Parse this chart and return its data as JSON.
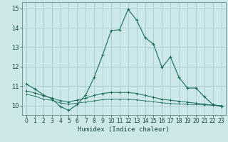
{
  "xlabel": "Humidex (Indice chaleur)",
  "bg_color": "#cce8e8",
  "grid_color": "#aacccc",
  "line_color": "#1a6b5a",
  "xlim": [
    -0.5,
    23.5
  ],
  "ylim": [
    9.5,
    15.3
  ],
  "yticks": [
    10,
    11,
    12,
    13,
    14,
    15
  ],
  "xticks": [
    0,
    1,
    2,
    3,
    4,
    5,
    6,
    7,
    8,
    9,
    10,
    11,
    12,
    13,
    14,
    15,
    16,
    17,
    18,
    19,
    20,
    21,
    22,
    23
  ],
  "series1_x": [
    0,
    1,
    2,
    3,
    4,
    5,
    6,
    7,
    8,
    9,
    10,
    11,
    12,
    13,
    14,
    15,
    16,
    17,
    18,
    19,
    20,
    21,
    22,
    23
  ],
  "series1_y": [
    11.1,
    10.85,
    10.55,
    10.35,
    9.95,
    9.75,
    10.05,
    10.55,
    11.45,
    12.6,
    13.85,
    13.9,
    14.95,
    14.4,
    13.5,
    13.15,
    11.95,
    12.5,
    11.45,
    10.9,
    10.9,
    10.45,
    10.05,
    9.95
  ],
  "series2_x": [
    0,
    1,
    2,
    3,
    4,
    5,
    6,
    7,
    8,
    9,
    10,
    11,
    12,
    13,
    14,
    15,
    16,
    17,
    18,
    19,
    20,
    21,
    22,
    23
  ],
  "series2_y": [
    10.75,
    10.65,
    10.5,
    10.38,
    10.25,
    10.18,
    10.28,
    10.38,
    10.52,
    10.62,
    10.67,
    10.67,
    10.67,
    10.62,
    10.52,
    10.42,
    10.32,
    10.27,
    10.22,
    10.17,
    10.12,
    10.07,
    10.02,
    9.99
  ],
  "series3_x": [
    0,
    1,
    2,
    3,
    4,
    5,
    6,
    7,
    8,
    9,
    10,
    11,
    12,
    13,
    14,
    15,
    16,
    17,
    18,
    19,
    20,
    21,
    22,
    23
  ],
  "series3_y": [
    10.58,
    10.48,
    10.33,
    10.27,
    10.13,
    10.07,
    10.12,
    10.18,
    10.24,
    10.3,
    10.32,
    10.32,
    10.32,
    10.29,
    10.24,
    10.19,
    10.14,
    10.1,
    10.08,
    10.06,
    10.04,
    10.03,
    10.01,
    9.98
  ]
}
